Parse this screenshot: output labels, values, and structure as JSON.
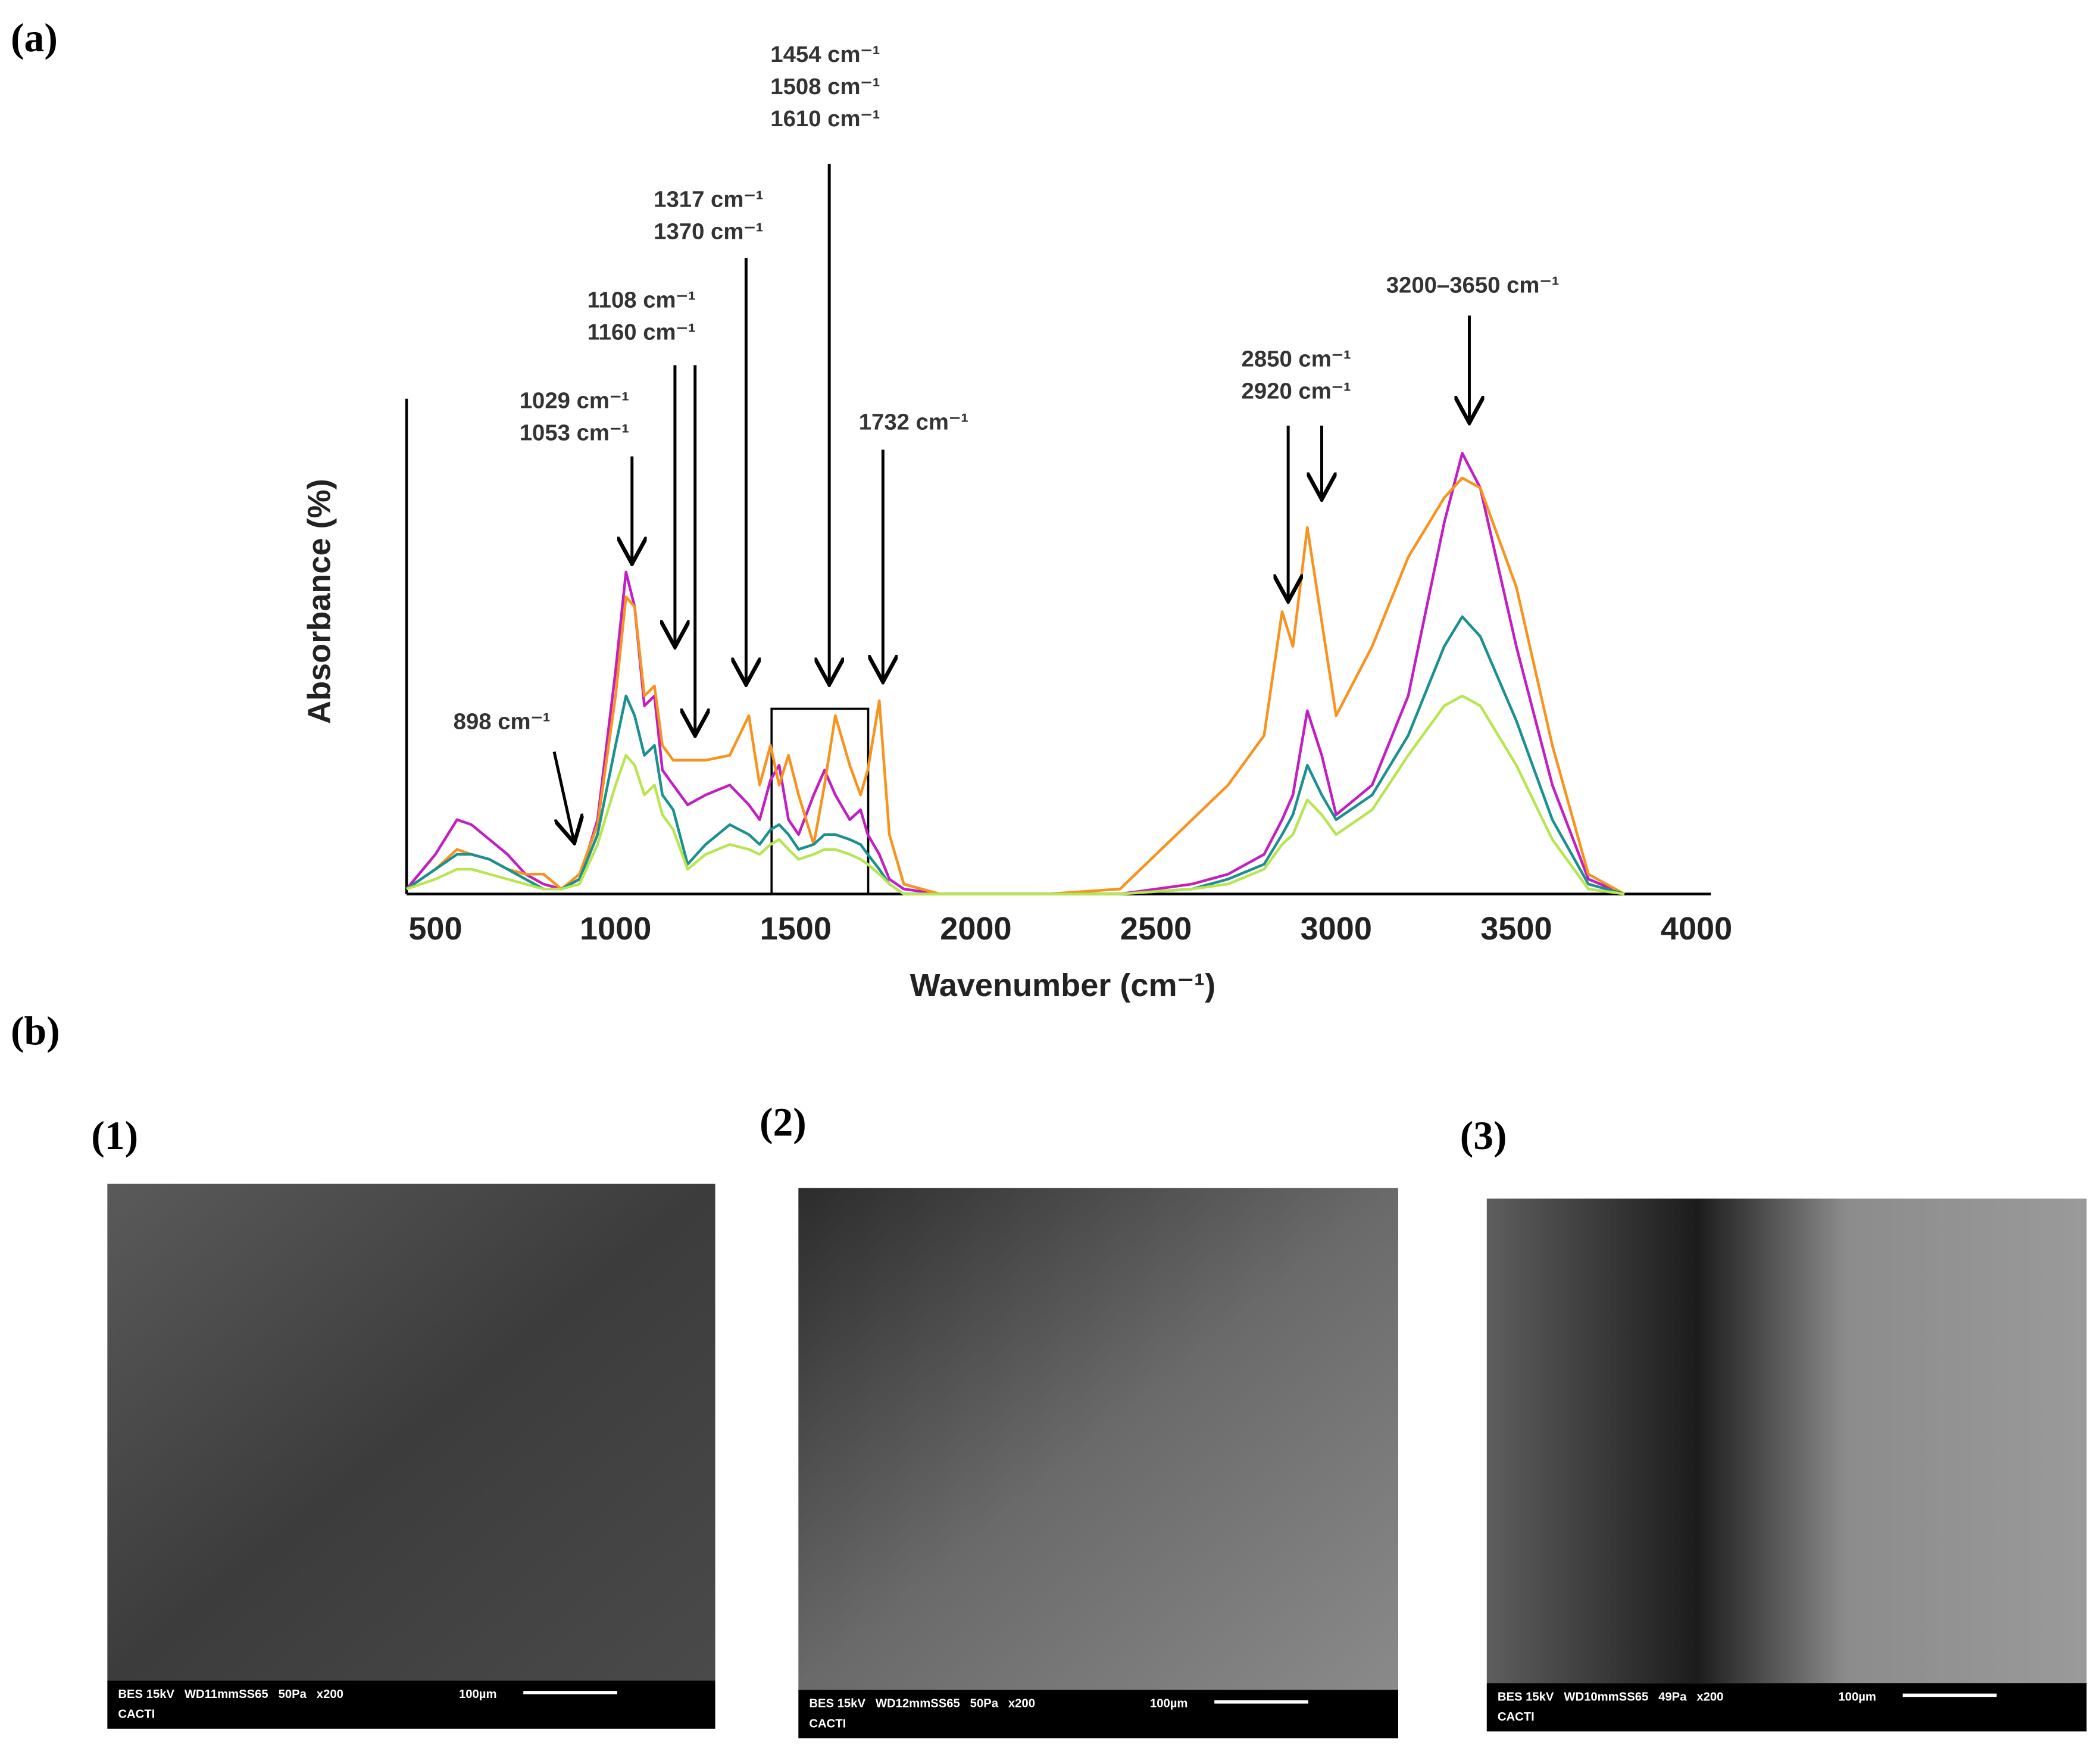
{
  "chart_data": {
    "type": "line",
    "x_label": "Wavenumber (cm⁻¹)",
    "y_label": "Absorbance (%)",
    "xlim": [
      420,
      4040
    ],
    "ylim": [
      0,
      100
    ],
    "xticks": [
      500,
      1000,
      1500,
      2000,
      2500,
      3000,
      3500,
      4000
    ],
    "x": [
      420,
      500,
      560,
      600,
      650,
      700,
      750,
      800,
      850,
      900,
      950,
      1000,
      1029,
      1053,
      1080,
      1108,
      1130,
      1160,
      1200,
      1250,
      1317,
      1370,
      1400,
      1430,
      1454,
      1480,
      1508,
      1550,
      1580,
      1610,
      1650,
      1680,
      1700,
      1732,
      1760,
      1800,
      1900,
      2000,
      2200,
      2400,
      2600,
      2700,
      2800,
      2850,
      2880,
      2920,
      2960,
      3000,
      3100,
      3200,
      3300,
      3350,
      3400,
      3500,
      3600,
      3700,
      3800
    ],
    "series": [
      {
        "color": "#c21fc2",
        "values": [
          1,
          8,
          15,
          14,
          11,
          8,
          4,
          2,
          1,
          3,
          15,
          45,
          65,
          58,
          38,
          40,
          25,
          22,
          18,
          20,
          22,
          18,
          15,
          23,
          26,
          15,
          12,
          20,
          25,
          20,
          15,
          17,
          12,
          8,
          3,
          1,
          0,
          0,
          0,
          0,
          2,
          4,
          8,
          15,
          20,
          37,
          28,
          16,
          22,
          40,
          75,
          89,
          82,
          50,
          22,
          3,
          0
        ]
      },
      {
        "color": "#f7931e",
        "values": [
          1,
          5,
          9,
          8,
          7,
          5,
          4,
          4,
          1,
          4,
          14,
          40,
          60,
          58,
          40,
          42,
          30,
          27,
          27,
          27,
          28,
          36,
          22,
          30,
          22,
          28,
          20,
          10,
          22,
          36,
          26,
          20,
          25,
          39,
          12,
          2,
          0,
          0,
          0,
          1,
          15,
          22,
          32,
          57,
          50,
          74,
          55,
          36,
          50,
          68,
          80,
          84,
          82,
          62,
          30,
          4,
          0
        ]
      },
      {
        "color": "#1a9090",
        "values": [
          1,
          5,
          8,
          8,
          7,
          5,
          3,
          1,
          1,
          3,
          12,
          30,
          40,
          36,
          28,
          30,
          20,
          17,
          6,
          10,
          14,
          12,
          10,
          13,
          14,
          12,
          9,
          10,
          12,
          12,
          11,
          10,
          8,
          5,
          2,
          0,
          0,
          0,
          0,
          0,
          1,
          3,
          6,
          12,
          16,
          26,
          20,
          15,
          20,
          32,
          50,
          56,
          52,
          35,
          15,
          2,
          0
        ]
      },
      {
        "color": "#b8e550",
        "values": [
          1,
          3,
          5,
          5,
          4,
          3,
          2,
          1,
          1,
          2,
          10,
          22,
          28,
          26,
          20,
          22,
          16,
          13,
          5,
          8,
          10,
          9,
          8,
          10,
          11,
          9,
          7,
          8,
          9,
          9,
          8,
          7,
          6,
          4,
          2,
          0,
          0,
          0,
          0,
          0,
          1,
          2,
          5,
          10,
          12,
          19,
          16,
          12,
          17,
          28,
          38,
          40,
          38,
          26,
          11,
          1,
          0
        ]
      }
    ],
    "annotations": [
      {
        "lines": [
          "898 cm⁻¹"
        ]
      },
      {
        "lines": [
          "1029 cm⁻¹",
          "1053 cm⁻¹"
        ]
      },
      {
        "lines": [
          "1108 cm⁻¹",
          "1160 cm⁻¹"
        ]
      },
      {
        "lines": [
          "1317 cm⁻¹",
          "1370 cm⁻¹"
        ]
      },
      {
        "lines": [
          "1454 cm⁻¹",
          "1508 cm⁻¹",
          "1610 cm⁻¹"
        ]
      },
      {
        "lines": [
          "1732 cm⁻¹"
        ]
      },
      {
        "lines": [
          "2850 cm⁻¹",
          "2920 cm⁻¹"
        ]
      },
      {
        "lines": [
          "3200–3650 cm⁻¹"
        ]
      }
    ]
  },
  "panel_labels": {
    "a": "(a)",
    "b": "(b)"
  },
  "sem_images": [
    {
      "label": "(1)",
      "info": "BES 15kV   WD11mmSS65   50Pa   x200",
      "scale": "100µm",
      "site": "CACTI"
    },
    {
      "label": "(2)",
      "info": "BES 15kV   WD12mmSS65   50Pa   x200",
      "scale": "100µm",
      "site": "CACTI"
    },
    {
      "label": "(3)",
      "info": "BES 15kV   WD10mmSS65   49Pa   x200",
      "scale": "100µm",
      "site": "CACTI"
    }
  ]
}
